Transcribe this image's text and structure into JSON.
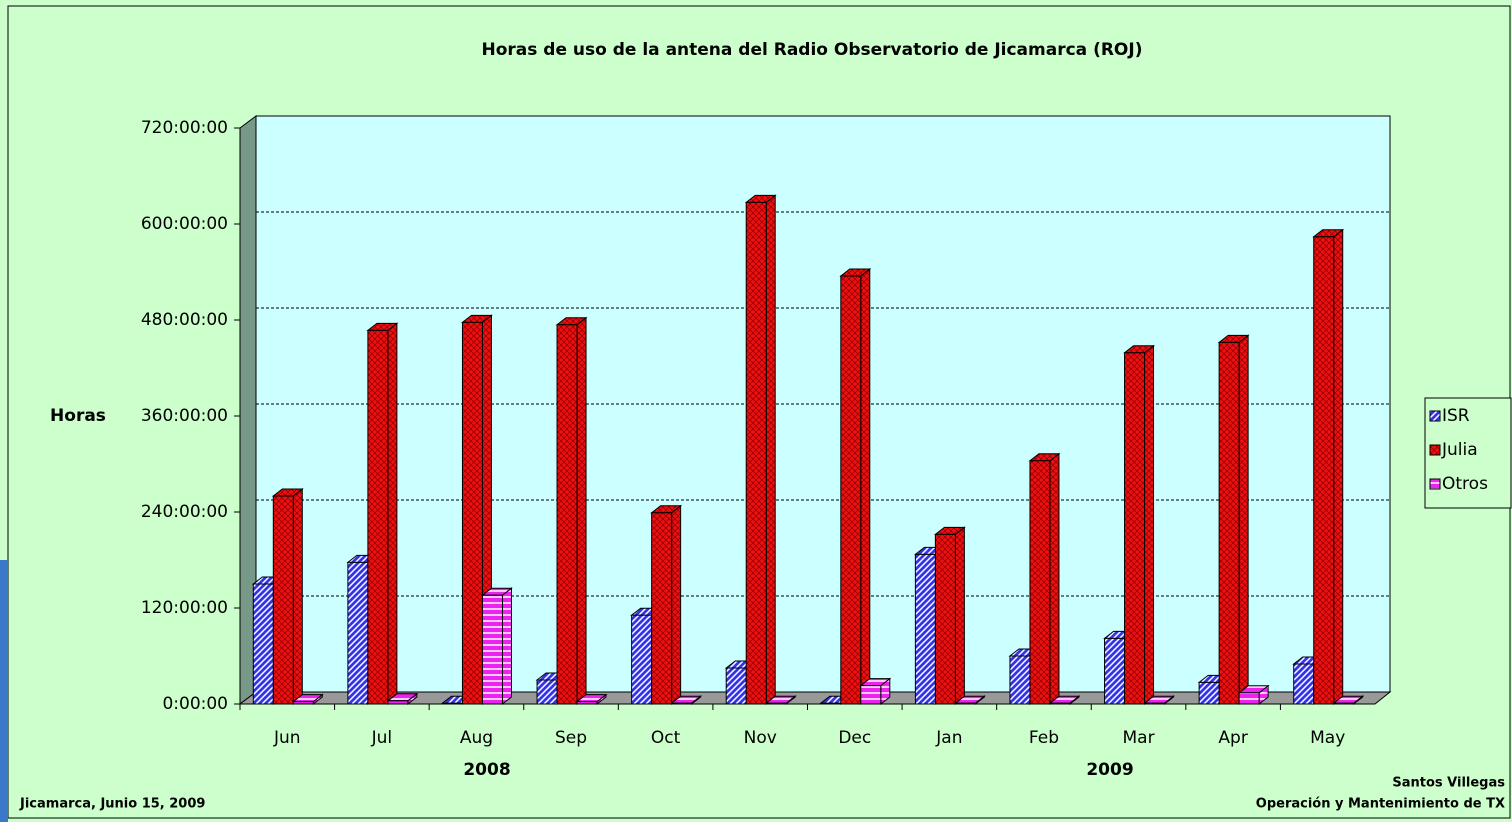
{
  "chart_data": {
    "type": "bar3d",
    "title": "Horas de uso de la antena del Radio Observatorio de Jicamarca (ROJ)",
    "y_label": "Horas",
    "categories": [
      "Jun",
      "Jul",
      "Aug",
      "Sep",
      "Oct",
      "Nov",
      "Dec",
      "Jan",
      "Feb",
      "Mar",
      "Apr",
      "May"
    ],
    "series": [
      {
        "name": "ISR",
        "color": "#3333ee",
        "values": [
          150,
          177,
          1,
          30,
          111,
          45,
          1,
          187,
          60,
          82,
          27,
          50
        ]
      },
      {
        "name": "Julia",
        "color": "#ee1111",
        "values": [
          260,
          467,
          477,
          474,
          239,
          627,
          535,
          212,
          304,
          439,
          452,
          584
        ]
      },
      {
        "name": "Otros",
        "color": "#ee22ee",
        "values": [
          3,
          4,
          136,
          3,
          1,
          1,
          23,
          1,
          1,
          1,
          14,
          1
        ]
      }
    ],
    "ylim": [
      0,
      720
    ],
    "yticks": [
      {
        "value": 0,
        "label": "0:00:00"
      },
      {
        "value": 120,
        "label": "120:00:00"
      },
      {
        "value": 240,
        "label": "240:00:00"
      },
      {
        "value": 360,
        "label": "360:00:00"
      },
      {
        "value": 480,
        "label": "480:00:00"
      },
      {
        "value": 600,
        "label": "600:00:00"
      },
      {
        "value": 720,
        "label": "720:00:00"
      }
    ],
    "grid": true,
    "legend": "right",
    "annotations": [
      "2008",
      "2009"
    ],
    "footer_left": "Jicamarca, Junio 15, 2009",
    "footer_right": [
      "Santos Villegas",
      "Operación y Mantenimiento de TX"
    ]
  }
}
